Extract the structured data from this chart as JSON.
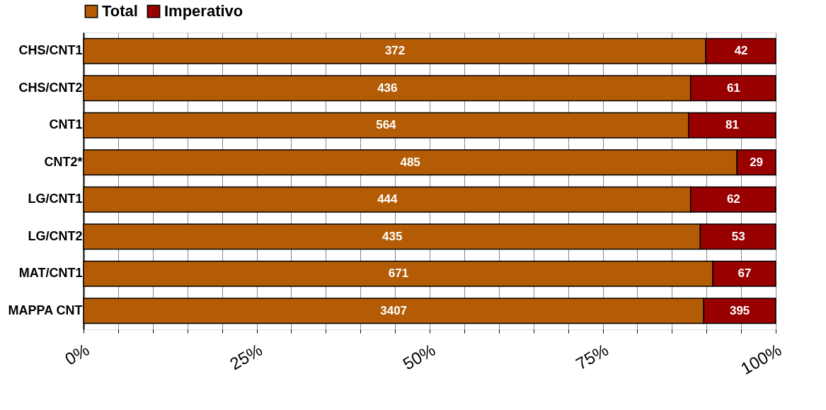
{
  "chart_data": {
    "type": "bar",
    "orientation": "horizontal",
    "stacked": true,
    "categories": [
      "CHS/CNT1",
      "CHS/CNT2",
      "CNT1",
      "CNT2*",
      "LG/CNT1",
      "LG/CNT2",
      "MAT/CNT1",
      "MAPPA CNT"
    ],
    "series": [
      {
        "name": "Total",
        "color": "#b35c05",
        "values": [
          89.9,
          87.7,
          87.4,
          94.4,
          87.7,
          89.1,
          90.9,
          89.6
        ]
      },
      {
        "name": "Imperativo",
        "color": "#990000",
        "values": [
          10.1,
          12.3,
          12.6,
          5.6,
          12.3,
          10.9,
          9.1,
          10.4
        ]
      }
    ],
    "annotations": [
      {
        "text": "372",
        "x": 45.0,
        "y": "CHS/CNT1"
      },
      {
        "text": "436",
        "x": 43.9,
        "y": "CHS/CNT2"
      },
      {
        "text": "564",
        "x": 43.7,
        "y": "CNT1"
      },
      {
        "text": "485",
        "x": 47.2,
        "y": "CNT2*"
      },
      {
        "text": "444",
        "x": 43.9,
        "y": "LG/CNT1"
      },
      {
        "text": "435",
        "x": 44.6,
        "y": "LG/CNT2"
      },
      {
        "text": "671",
        "x": 45.5,
        "y": "MAT/CNT1"
      },
      {
        "text": "3407",
        "x": 44.8,
        "y": "MAPPA CNT"
      },
      {
        "text": "42",
        "x": 95.0,
        "y": "CHS/CNT1"
      },
      {
        "text": "61",
        "x": 93.9,
        "y": "CHS/CNT2"
      },
      {
        "text": "81",
        "x": 93.7,
        "y": "CNT1"
      },
      {
        "text": "29",
        "x": 97.2,
        "y": "CNT2*"
      },
      {
        "text": "62",
        "x": 93.9,
        "y": "LG/CNT1"
      },
      {
        "text": "53",
        "x": 94.6,
        "y": "LG/CNT2"
      },
      {
        "text": "67",
        "x": 95.5,
        "y": "MAT/CNT1"
      },
      {
        "text": "395",
        "x": 94.8,
        "y": "MAPPA CNT"
      }
    ],
    "xlim": [
      0,
      100
    ],
    "xticks": [
      {
        "value": 0,
        "label": "0%"
      },
      {
        "value": 5,
        "label": null
      },
      {
        "value": 10,
        "label": null
      },
      {
        "value": 15,
        "label": null
      },
      {
        "value": 20,
        "label": null
      },
      {
        "value": 25,
        "label": "25%"
      },
      {
        "value": 30,
        "label": null
      },
      {
        "value": 35,
        "label": null
      },
      {
        "value": 40,
        "label": null
      },
      {
        "value": 45,
        "label": null
      },
      {
        "value": 50,
        "label": "50%"
      },
      {
        "value": 55,
        "label": null
      },
      {
        "value": 60,
        "label": null
      },
      {
        "value": 65,
        "label": null
      },
      {
        "value": 70,
        "label": null
      },
      {
        "value": 75,
        "label": "75%"
      },
      {
        "value": 80,
        "label": null
      },
      {
        "value": 85,
        "label": null
      },
      {
        "value": 90,
        "label": null
      },
      {
        "value": 95,
        "label": null
      },
      {
        "value": 100,
        "label": "100%"
      }
    ],
    "grid": "x",
    "legend": "top"
  }
}
